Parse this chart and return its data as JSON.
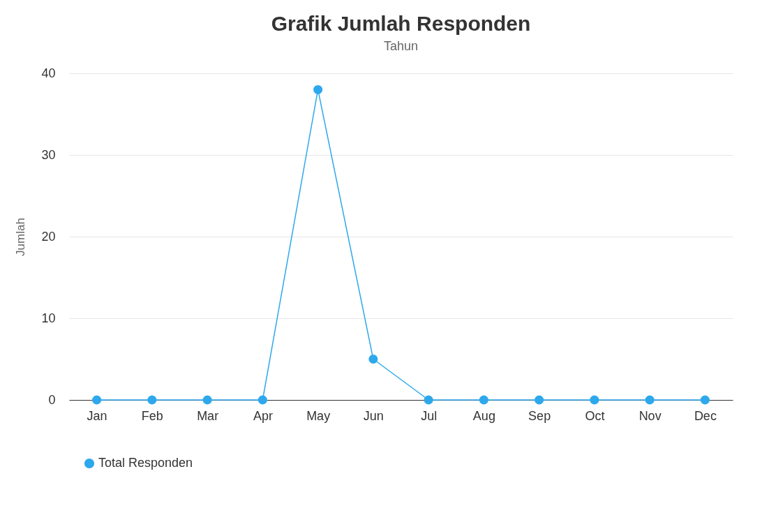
{
  "chart_data": {
    "type": "line",
    "title": "Grafik Jumlah Responden",
    "subtitle": "Tahun",
    "ylabel": "Jumlah",
    "categories": [
      "Jan",
      "Feb",
      "Mar",
      "Apr",
      "May",
      "Jun",
      "Jul",
      "Aug",
      "Sep",
      "Oct",
      "Nov",
      "Dec"
    ],
    "series": [
      {
        "name": "Total Responden",
        "color": "#2ea8ec",
        "values": [
          0,
          0,
          0,
          0,
          38,
          5,
          0,
          0,
          0,
          0,
          0,
          0
        ]
      }
    ],
    "ylim": [
      0,
      40
    ],
    "yticks": [
      0,
      10,
      20,
      30,
      40
    ],
    "grid": "y",
    "legend": "bottom",
    "marker": "circle",
    "line_style": "solid"
  }
}
